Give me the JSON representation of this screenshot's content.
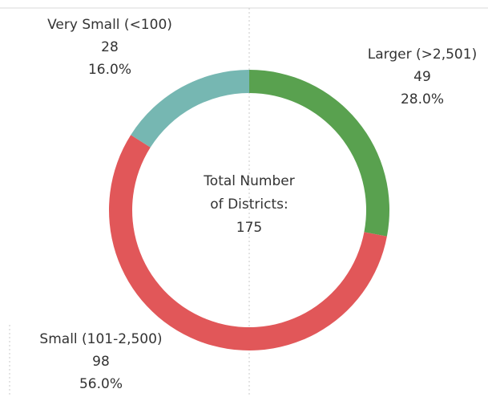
{
  "chart_data": {
    "type": "donut",
    "categories": [
      "Larger (>2,501)",
      "Small (101-2,500)",
      "Very Small (<100)"
    ],
    "counts": [
      49,
      98,
      28
    ],
    "values": [
      28,
      56,
      16
    ],
    "value_labels": [
      "28.0%",
      "56.0%",
      "16.0%"
    ],
    "colors": [
      "#59a14f",
      "#e15759",
      "#76b7b2"
    ],
    "center_title": [
      "Total Number",
      "of Districts:"
    ],
    "center_value": 175
  }
}
